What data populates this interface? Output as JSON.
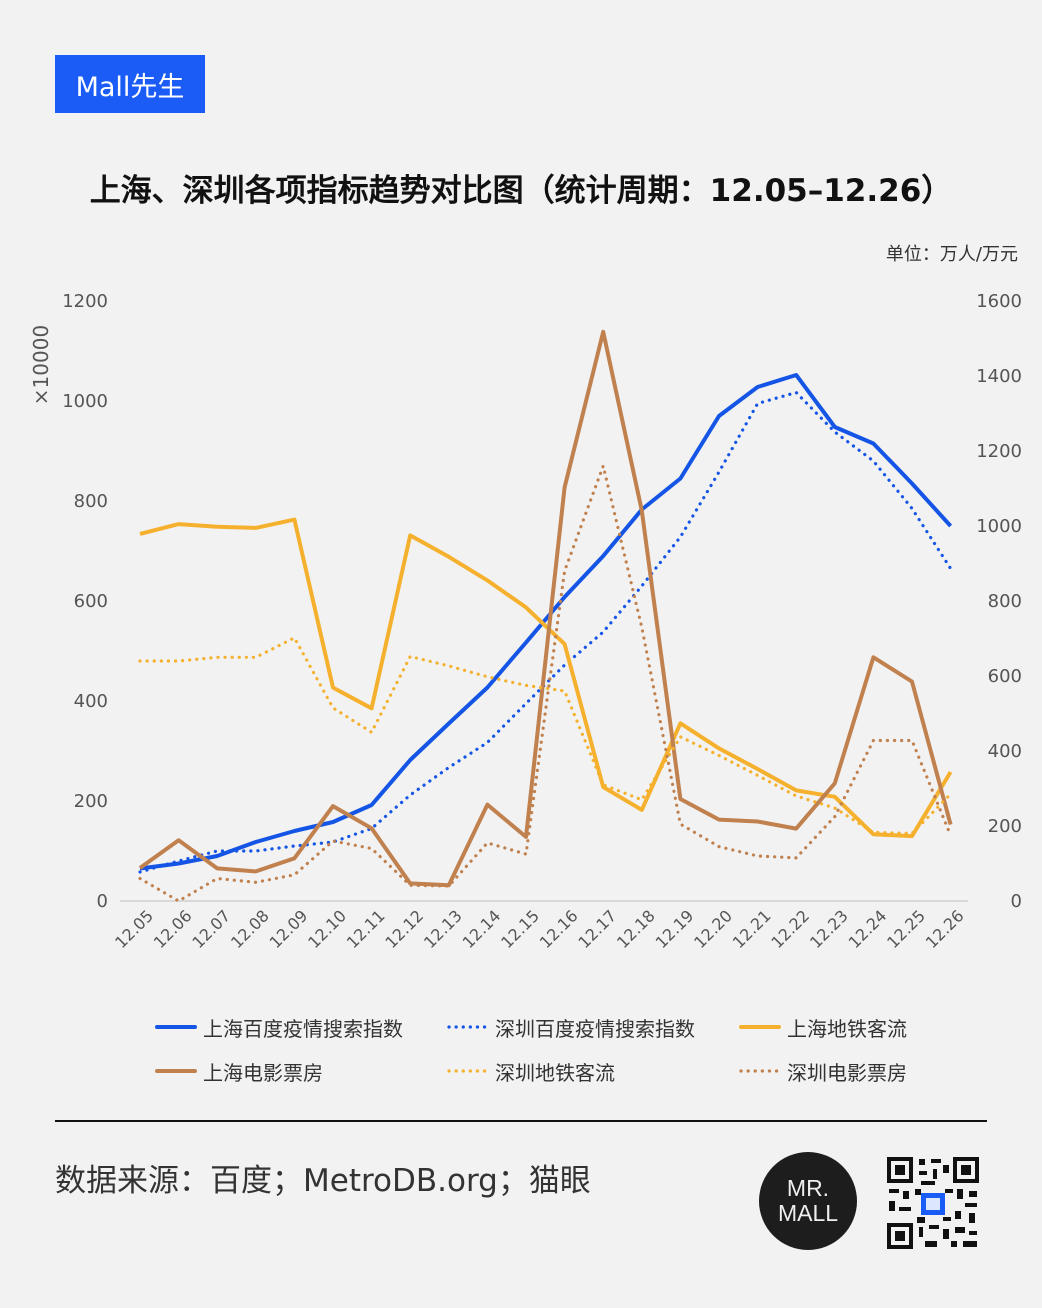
{
  "brand": "Mall先生",
  "title": "上海、深圳各项指标趋势对比图（统计周期：12.05–12.26）",
  "unit": "单位：万人/万元",
  "source": "数据来源：百度；MetroDB.org；猫眼",
  "logo_text": [
    "MR.",
    "MALL"
  ],
  "colors": {
    "blue": "#1455e6",
    "yellow": "#f5b12e",
    "brown": "#c0814f",
    "brand": "#1a5cf5"
  },
  "chart_data": {
    "type": "line",
    "title": "上海、深圳各项指标趋势对比图（统计周期：12.05–12.26）",
    "categories": [
      "12.05",
      "12.06",
      "12.07",
      "12.08",
      "12.09",
      "12.10",
      "12.11",
      "12.12",
      "12.13",
      "12.14",
      "12.15",
      "12.16",
      "12.17",
      "12.18",
      "12.19",
      "12.20",
      "12.21",
      "12.22",
      "12.23",
      "12.24",
      "12.25",
      "12.26"
    ],
    "left_axis": {
      "multiplier": "×10000",
      "ylim": [
        0,
        1200
      ],
      "ticks": [
        "0",
        "200",
        "400",
        "600",
        "800",
        "1000",
        "1200"
      ]
    },
    "right_axis": {
      "ylim": [
        0,
        1600
      ],
      "ticks": [
        "0",
        "200",
        "400",
        "600",
        "800",
        "1000",
        "1200",
        "1400",
        "1600"
      ]
    },
    "grid": false,
    "legend_position": "bottom",
    "series": [
      {
        "name": "上海百度疫情搜索指数",
        "axis": "left",
        "color": "#1455e6",
        "dash": "solid",
        "values": [
          65,
          75,
          90,
          118,
          140,
          158,
          192,
          282,
          355,
          427,
          517,
          608,
          690,
          783,
          845,
          970,
          1028,
          1052,
          948,
          915,
          835,
          750
        ]
      },
      {
        "name": "深圳百度疫情搜索指数",
        "axis": "left",
        "color": "#1455e6",
        "dash": "dotted",
        "values": [
          58,
          80,
          100,
          100,
          110,
          118,
          145,
          212,
          267,
          317,
          395,
          472,
          538,
          630,
          728,
          858,
          995,
          1017,
          938,
          880,
          785,
          665
        ]
      },
      {
        "name": "上海地铁客流",
        "axis": "right",
        "color": "#f5b12e",
        "dash": "solid",
        "values": [
          979,
          1005,
          998,
          995,
          1017,
          569,
          514,
          975,
          918,
          855,
          783,
          685,
          304,
          243,
          474,
          407,
          352,
          295,
          278,
          178,
          173,
          344
        ]
      },
      {
        "name": "上海电影票房",
        "axis": "right",
        "color": "#c0814f",
        "dash": "solid",
        "values": [
          88,
          162,
          87,
          79,
          114,
          253,
          194,
          47,
          42,
          257,
          171,
          1103,
          1518,
          1041,
          272,
          217,
          212,
          193,
          314,
          650,
          585,
          204
        ]
      },
      {
        "name": "深圳地铁客流",
        "axis": "right",
        "color": "#f5b12e",
        "dash": "dotted",
        "values": [
          640,
          640,
          650,
          650,
          702,
          515,
          450,
          652,
          627,
          598,
          575,
          560,
          310,
          270,
          438,
          388,
          335,
          280,
          248,
          183,
          180,
          285
        ]
      },
      {
        "name": "深圳电影票房",
        "axis": "right",
        "color": "#c0814f",
        "dash": "dotted",
        "values": [
          60,
          0,
          60,
          50,
          70,
          160,
          140,
          42,
          40,
          155,
          125,
          880,
          1160,
          730,
          205,
          145,
          120,
          115,
          225,
          428,
          428,
          175
        ]
      }
    ]
  }
}
